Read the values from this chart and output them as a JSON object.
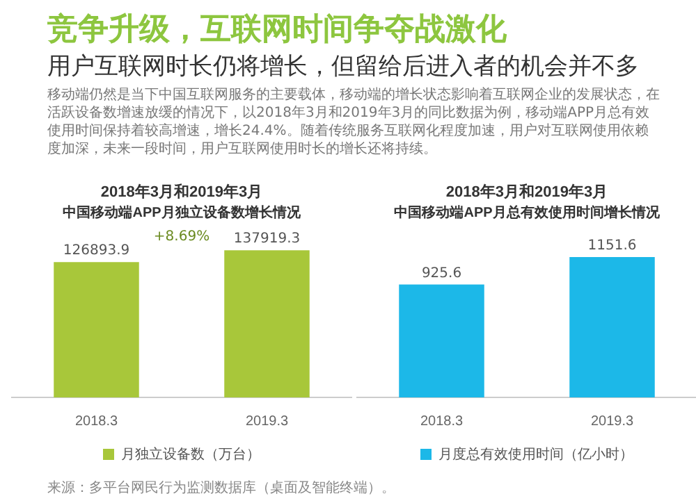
{
  "chart_data": [
    {
      "type": "other",
      "title": "竞争升级，互联网时间争夺战激化",
      "subtitle": "用户互联网时长仍将增长，但留给后进入者的机会并不多",
      "annotations": [
        "移动端仍然是当下中国互联网服务的主要载体，移动端的增长状态影响着互联网企业的发展状态，在活跃设备数增速放缓的情况下，以2018年3月和2019年3月的同比数据为例，移动端APP月总有效使用时间保持着较高增速，增长24.4%。随着传统服务互联网化程度加速，用户对互联网使用依赖度加深，未来一段时间，用户互联网使用时长的增长还将持续。",
        "来源：多平台网民行为监测数据库（桌面及智能终端）。"
      ]
    },
    {
      "type": "bar",
      "title": "2018年3月和2019年3月",
      "subtitle": "中国移动端APP月独立设备数增长情况",
      "categories": [
        "2018.3",
        "2019.3"
      ],
      "series": [
        {
          "name": "月独立设备数（万台）",
          "color": "#a8c73a",
          "values": [
            126893.9,
            137919.3
          ]
        }
      ],
      "data_labels": true,
      "legend": "bottom",
      "annotations": [
        "+8.69%"
      ]
    },
    {
      "type": "bar",
      "title": "2018年3月和2019年3月",
      "subtitle": "中国移动端APP月总有效使用时间增长情况",
      "categories": [
        "2018.3",
        "2019.3"
      ],
      "series": [
        {
          "name": "月度总有效使用时间（亿小时）",
          "color": "#1cb8e8",
          "values": [
            925.6,
            1151.6
          ]
        }
      ],
      "data_labels": true,
      "legend": "bottom"
    }
  ]
}
